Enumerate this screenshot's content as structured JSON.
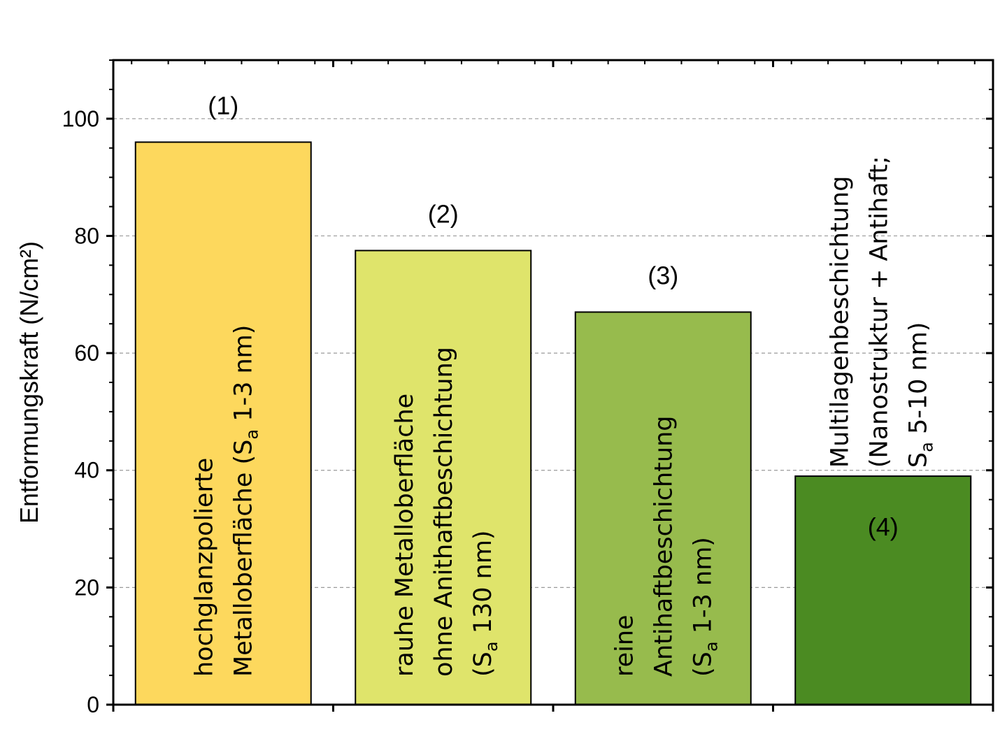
{
  "chart_data": {
    "type": "bar",
    "ylabel": "Entformungskraft (N/cm²)",
    "ylim": [
      0,
      110
    ],
    "yticks": [
      0,
      20,
      40,
      60,
      80,
      100
    ],
    "grid": "horizontal dashed",
    "categories": [
      "(1)",
      "(2)",
      "(3)",
      "(4)"
    ],
    "values": [
      96,
      77.5,
      67,
      39
    ],
    "colors": [
      "#fdd85d",
      "#dfe46b",
      "#97bb4d",
      "#4b8b22"
    ],
    "bar_labels": [
      [
        "hochglanzpolierte",
        "Metalloberfläche (S|a| 1-3 nm)"
      ],
      [
        "rauhe Metalloberfläche",
        "ohne Anithaftbeschichtung",
        "(S|a| 130 nm)"
      ],
      [
        "reine",
        "Antihaftbeschichtung",
        "(S|a| 1-3 nm)"
      ],
      [
        "Multilagenbeschichtung",
        "(Nanostruktur + Antihaft;",
        "S|a| 5-10 nm)"
      ]
    ]
  }
}
